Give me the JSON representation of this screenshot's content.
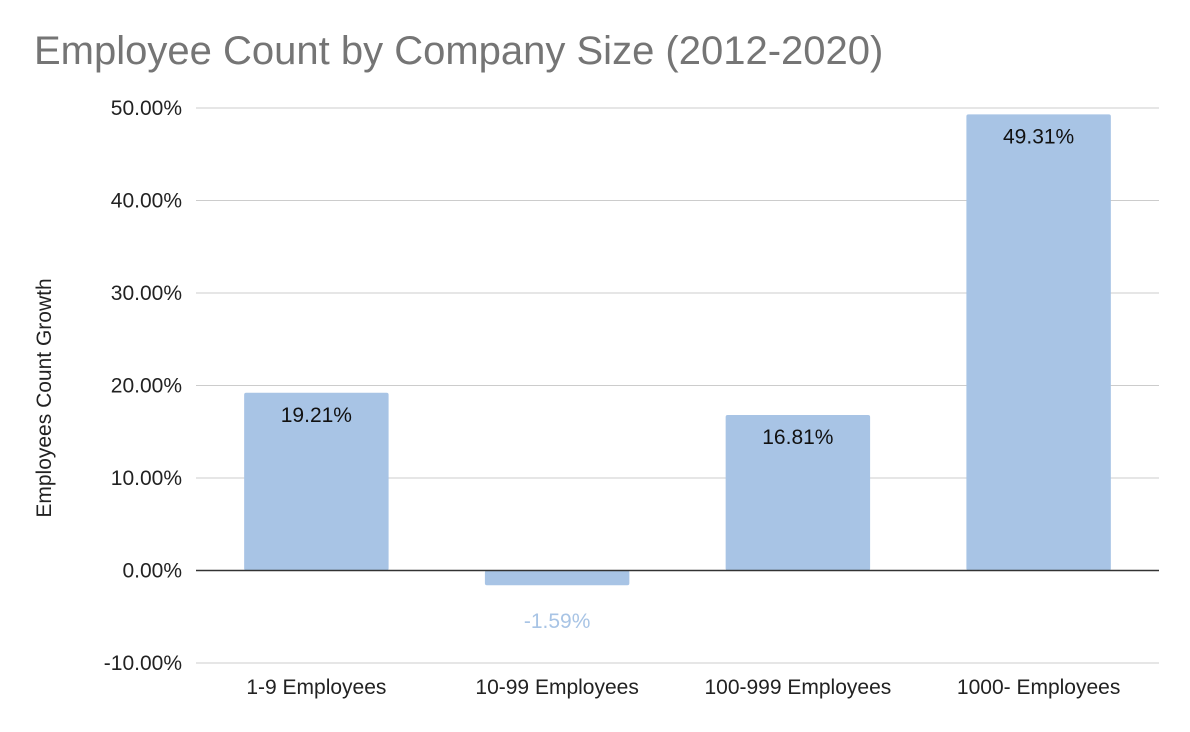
{
  "chart_data": {
    "type": "bar",
    "title": "Employee Count by Company Size (2012-2020)",
    "xlabel": "",
    "ylabel": "Employees Count Growth",
    "categories": [
      "1-9 Employees",
      "10-99 Employees",
      "100-999 Employees",
      "1000- Employees"
    ],
    "values": [
      19.21,
      -1.59,
      16.81,
      49.31
    ],
    "data_labels": [
      "19.21%",
      "-1.59%",
      "16.81%",
      "49.31%"
    ],
    "yticks": [
      -10,
      0,
      10,
      20,
      30,
      40,
      50
    ],
    "ytick_labels": [
      "-10.00%",
      "0.00%",
      "10.00%",
      "20.00%",
      "30.00%",
      "40.00%",
      "50.00%"
    ],
    "ylim": [
      -10,
      50
    ],
    "grid": true,
    "legend": "none",
    "colors": {
      "bar": "#a8c4e5",
      "positive_label": "#111111",
      "negative_label": "#a8c4e5",
      "title": "#757575"
    }
  }
}
